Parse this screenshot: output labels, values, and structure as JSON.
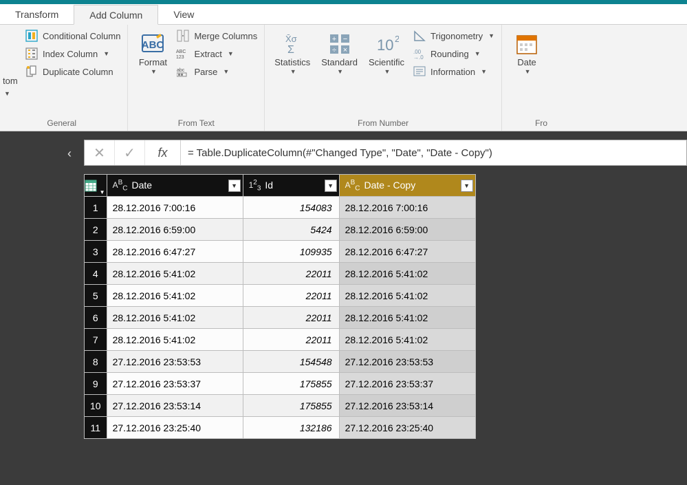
{
  "colors": {
    "teal": "#0d8390",
    "ribbon_bg": "#f3f3f3",
    "dark": "#3b3b3b",
    "header_dark": "#111111",
    "header_selected": "#b0881c",
    "sel_cell": "#d9d9d9"
  },
  "tabs": {
    "items": [
      {
        "label": "Transform",
        "active": false
      },
      {
        "label": "Add Column",
        "active": true
      },
      {
        "label": "View",
        "active": false
      }
    ]
  },
  "ribbon": {
    "general": {
      "label": "General",
      "custom_stub": "tom",
      "conditional": "Conditional Column",
      "index": "Index Column",
      "duplicate": "Duplicate Column"
    },
    "fromText": {
      "label": "From Text",
      "format": "Format",
      "merge": "Merge Columns",
      "extract": "Extract",
      "parse": "Parse"
    },
    "fromNumber": {
      "label": "From Number",
      "statistics": "Statistics",
      "standard": "Standard",
      "scientific": "Scientific",
      "trig": "Trigonometry",
      "rounding": "Rounding",
      "information": "Information"
    },
    "date": {
      "label_stub": "Fro",
      "date": "Date"
    }
  },
  "formula": {
    "fx": "fx",
    "text": "= Table.DuplicateColumn(#\"Changed Type\", \"Date\", \"Date - Copy\")"
  },
  "grid": {
    "columns": [
      {
        "name": "Date",
        "typeicon": "ABC",
        "selected": false
      },
      {
        "name": "Id",
        "typeicon": "123",
        "selected": false
      },
      {
        "name": "Date - Copy",
        "typeicon": "ABC",
        "selected": true
      }
    ],
    "rows": [
      {
        "n": "1",
        "date": "28.12.2016 7:00:16",
        "id": "154083",
        "copy": "28.12.2016 7:00:16"
      },
      {
        "n": "2",
        "date": "28.12.2016 6:59:00",
        "id": "5424",
        "copy": "28.12.2016 6:59:00"
      },
      {
        "n": "3",
        "date": "28.12.2016 6:47:27",
        "id": "109935",
        "copy": "28.12.2016 6:47:27"
      },
      {
        "n": "4",
        "date": "28.12.2016 5:41:02",
        "id": "22011",
        "copy": "28.12.2016 5:41:02"
      },
      {
        "n": "5",
        "date": "28.12.2016 5:41:02",
        "id": "22011",
        "copy": "28.12.2016 5:41:02"
      },
      {
        "n": "6",
        "date": "28.12.2016 5:41:02",
        "id": "22011",
        "copy": "28.12.2016 5:41:02"
      },
      {
        "n": "7",
        "date": "28.12.2016 5:41:02",
        "id": "22011",
        "copy": "28.12.2016 5:41:02"
      },
      {
        "n": "8",
        "date": "27.12.2016 23:53:53",
        "id": "154548",
        "copy": "27.12.2016 23:53:53"
      },
      {
        "n": "9",
        "date": "27.12.2016 23:53:37",
        "id": "175855",
        "copy": "27.12.2016 23:53:37"
      },
      {
        "n": "10",
        "date": "27.12.2016 23:53:14",
        "id": "175855",
        "copy": "27.12.2016 23:53:14"
      },
      {
        "n": "11",
        "date": "27.12.2016 23:25:40",
        "id": "132186",
        "copy": "27.12.2016 23:25:40"
      }
    ]
  }
}
